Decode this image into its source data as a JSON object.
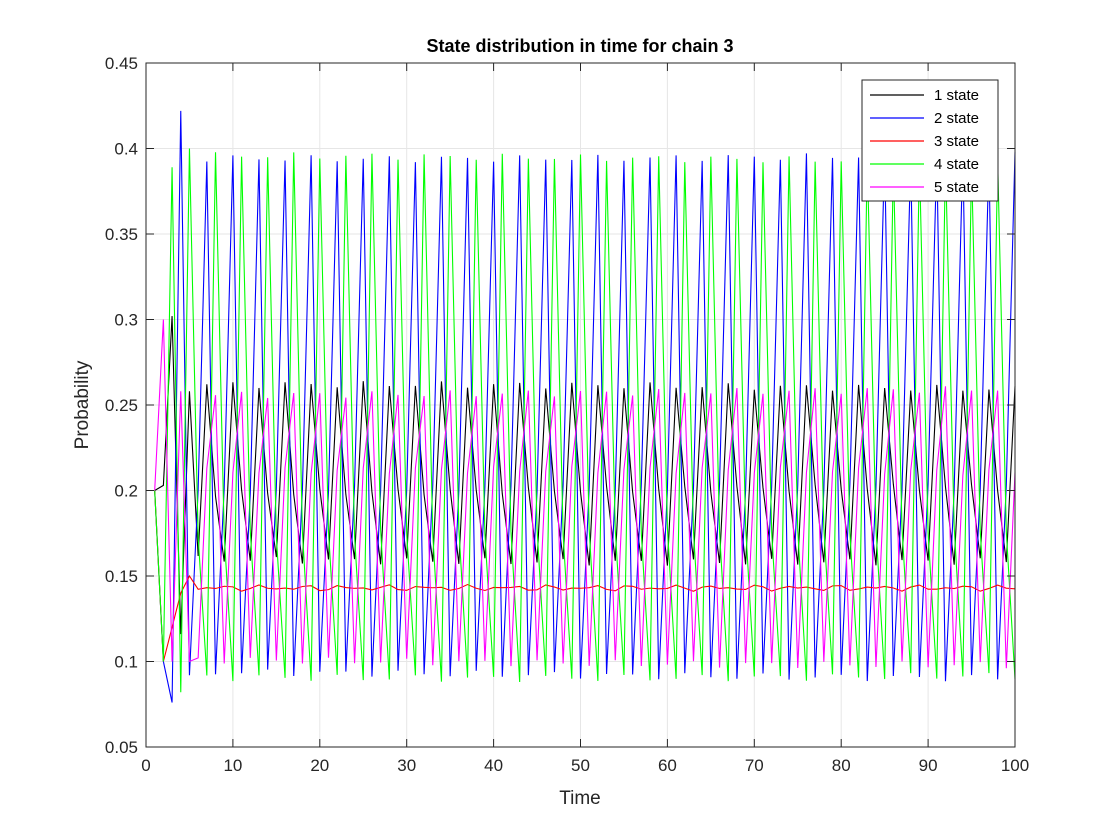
{
  "chart_data": {
    "type": "line",
    "title": "State distribution in time for chain 3",
    "xlabel": "Time",
    "ylabel": "Probability",
    "xlim": [
      0,
      100
    ],
    "ylim": [
      0.05,
      0.45
    ],
    "xticks": [
      0,
      10,
      20,
      30,
      40,
      50,
      60,
      70,
      80,
      90,
      100
    ],
    "yticks": [
      0.05,
      0.1,
      0.15,
      0.2,
      0.25,
      0.3,
      0.35,
      0.4,
      0.45
    ],
    "xtick_labels": [
      "0",
      "10",
      "20",
      "30",
      "40",
      "50",
      "60",
      "70",
      "80",
      "90",
      "100"
    ],
    "ytick_labels": [
      "0.05",
      "0.1",
      "0.15",
      "0.2",
      "0.25",
      "0.3",
      "0.35",
      "0.4",
      "0.45"
    ],
    "grid": true,
    "legend_position": "top-right",
    "series": [
      {
        "name": "1 state",
        "color": "#000000",
        "period": 3,
        "start": [
          [
            1,
            0.2
          ],
          [
            2,
            0.203
          ],
          [
            3,
            0.302
          ],
          [
            4,
            0.116
          ],
          [
            5,
            0.258
          ]
        ],
        "cycle": [
          0.26,
          0.2,
          0.16
        ],
        "jitter": 0.004
      },
      {
        "name": "2 state",
        "color": "#0000ff",
        "period": 3,
        "start": [
          [
            1,
            0.2
          ],
          [
            2,
            0.1
          ],
          [
            3,
            0.076
          ],
          [
            4,
            0.422
          ],
          [
            5,
            0.092
          ]
        ],
        "cycle": [
          0.396,
          0.092,
          0.2
        ],
        "jitter": 0.004
      },
      {
        "name": "3 state",
        "color": "#ff0000",
        "period": 3,
        "start": [
          [
            1,
            0.2
          ],
          [
            2,
            0.1
          ],
          [
            3,
            0.12
          ],
          [
            4,
            0.14
          ],
          [
            5,
            0.15
          ]
        ],
        "cycle": [
          0.143,
          0.143,
          0.143
        ],
        "jitter": 0.002
      },
      {
        "name": "4 state",
        "color": "#00ff00",
        "period": 3,
        "start": [
          [
            1,
            0.2
          ],
          [
            2,
            0.1
          ],
          [
            3,
            0.389
          ],
          [
            4,
            0.082
          ],
          [
            5,
            0.4
          ]
        ],
        "cycle": [
          0.092,
          0.394,
          0.175
        ],
        "jitter": 0.004
      },
      {
        "name": "5 state",
        "color": "#ff00ff",
        "period": 3,
        "start": [
          [
            1,
            0.2
          ],
          [
            2,
            0.3
          ],
          [
            3,
            0.1
          ],
          [
            4,
            0.258
          ],
          [
            5,
            0.1
          ]
        ],
        "cycle": [
          0.21,
          0.258,
          0.1
        ],
        "jitter": 0.004
      }
    ]
  }
}
